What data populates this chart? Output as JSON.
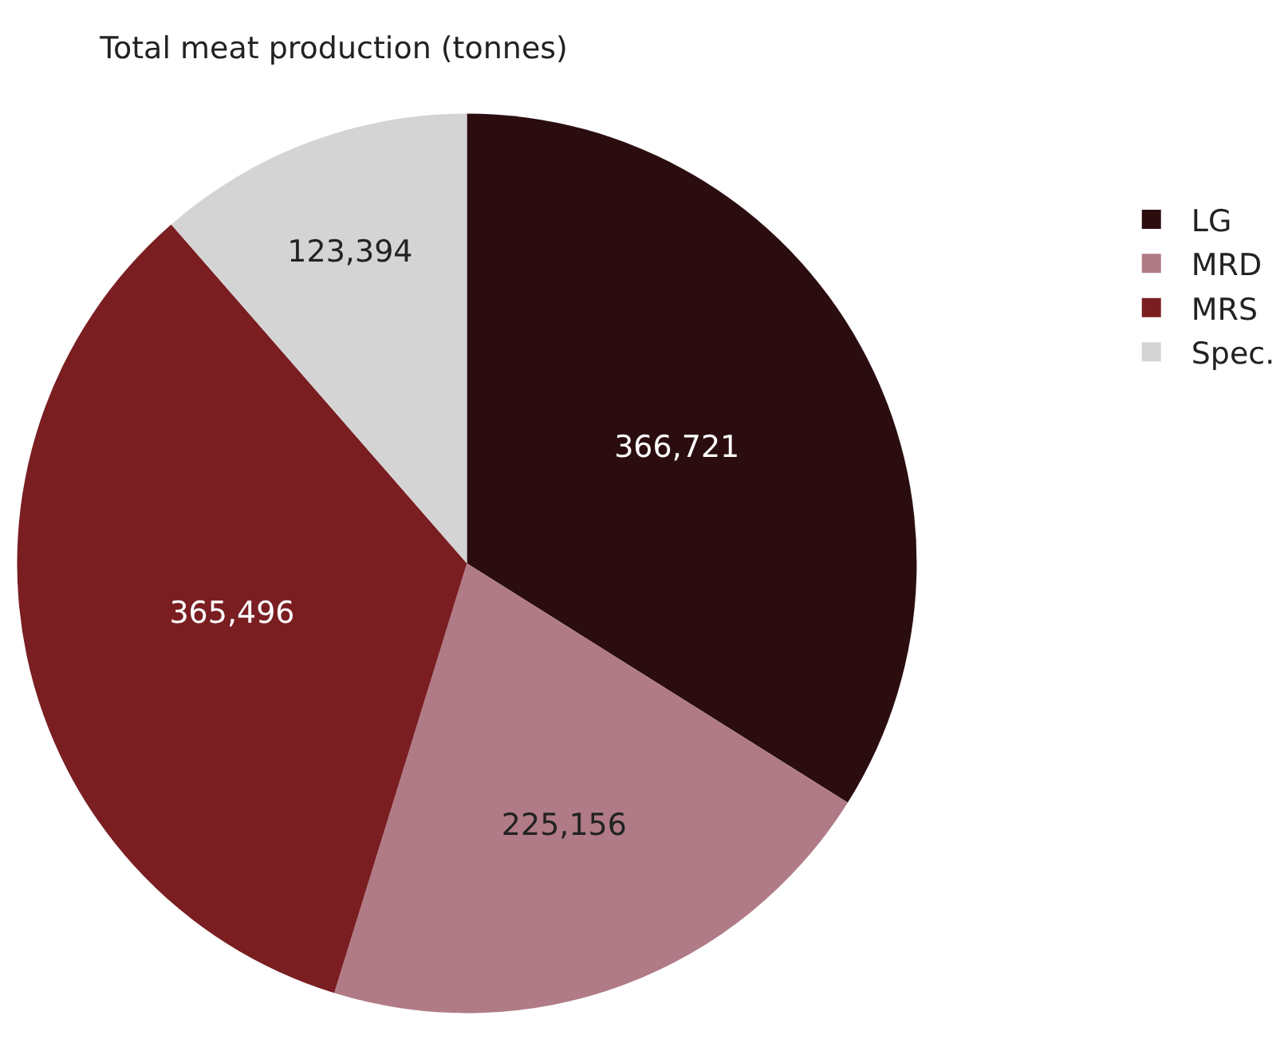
{
  "chart_data": {
    "type": "pie",
    "title": "Total meat production (tonnes)",
    "categories": [
      "LG",
      "MRD",
      "MRS",
      "Spec."
    ],
    "values": [
      366721,
      225156,
      365496,
      123394
    ],
    "colors": [
      "#2b0d10",
      "#b07b86",
      "#7a1e22",
      "#d4d4d4"
    ],
    "value_labels": [
      "366,721",
      "225,156",
      "365,496",
      "123,394"
    ],
    "legend": "right"
  }
}
